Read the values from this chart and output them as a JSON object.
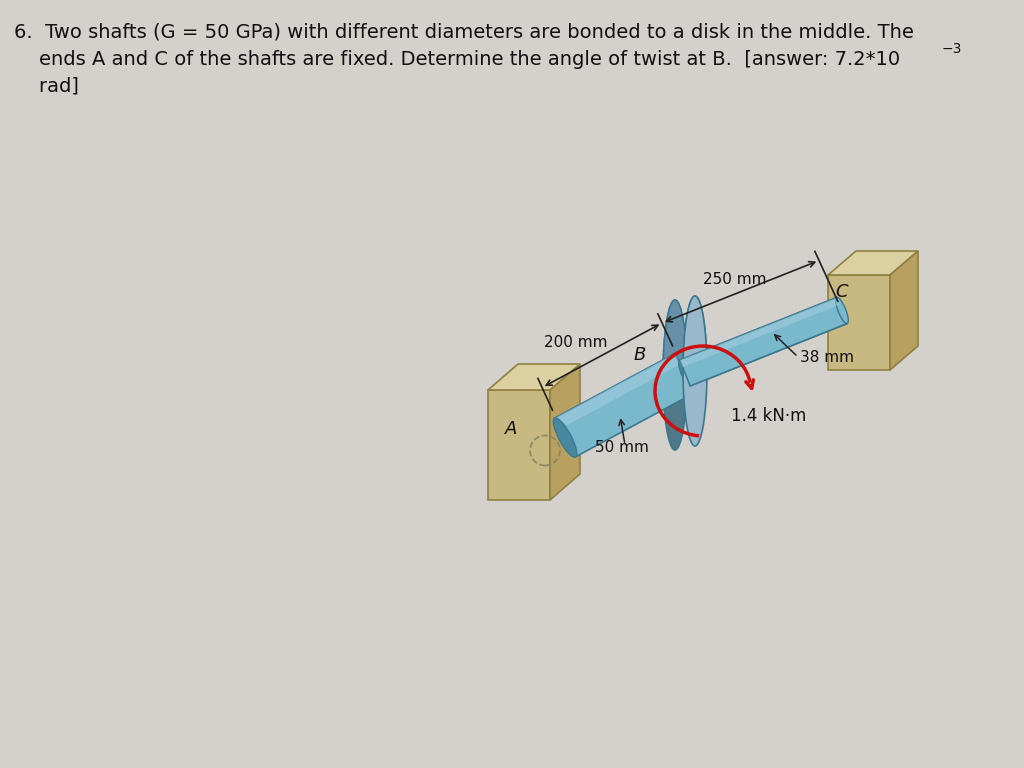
{
  "background_color": "#d4d0cb",
  "wall_front_color": "#c8b882",
  "wall_top_color": "#ddd0a0",
  "wall_side_color": "#b8a060",
  "wall_edge_color": "#908040",
  "shaft_color": "#7ab8cc",
  "shaft_highlight": "#a8d0e0",
  "shaft_shadow": "#4a88a0",
  "shaft_edge_color": "#3a7890",
  "disk_front_color": "#9ab8cc",
  "disk_side_color": "#6890a8",
  "disk_dark_color": "#507888",
  "torque_arrow_color": "#cc1010",
  "dim_line_color": "#222222",
  "text_color": "#111111",
  "label_200mm": "200 mm",
  "label_250mm": "250 mm",
  "label_38mm": "38 mm",
  "label_50mm": "50 mm",
  "label_torque": "1.4 kN·m",
  "label_A": "A",
  "label_B": "B",
  "label_C": "C",
  "line1": "6.  Two shafts (G = 50 GPa) with different diameters are bonded to a disk in the middle. The",
  "line2": "    ends A and C of the shafts are fixed. Determine the angle of twist at B.  [answer: 7.2*10",
  "line2_super": "−3",
  "line3": "    rad]"
}
